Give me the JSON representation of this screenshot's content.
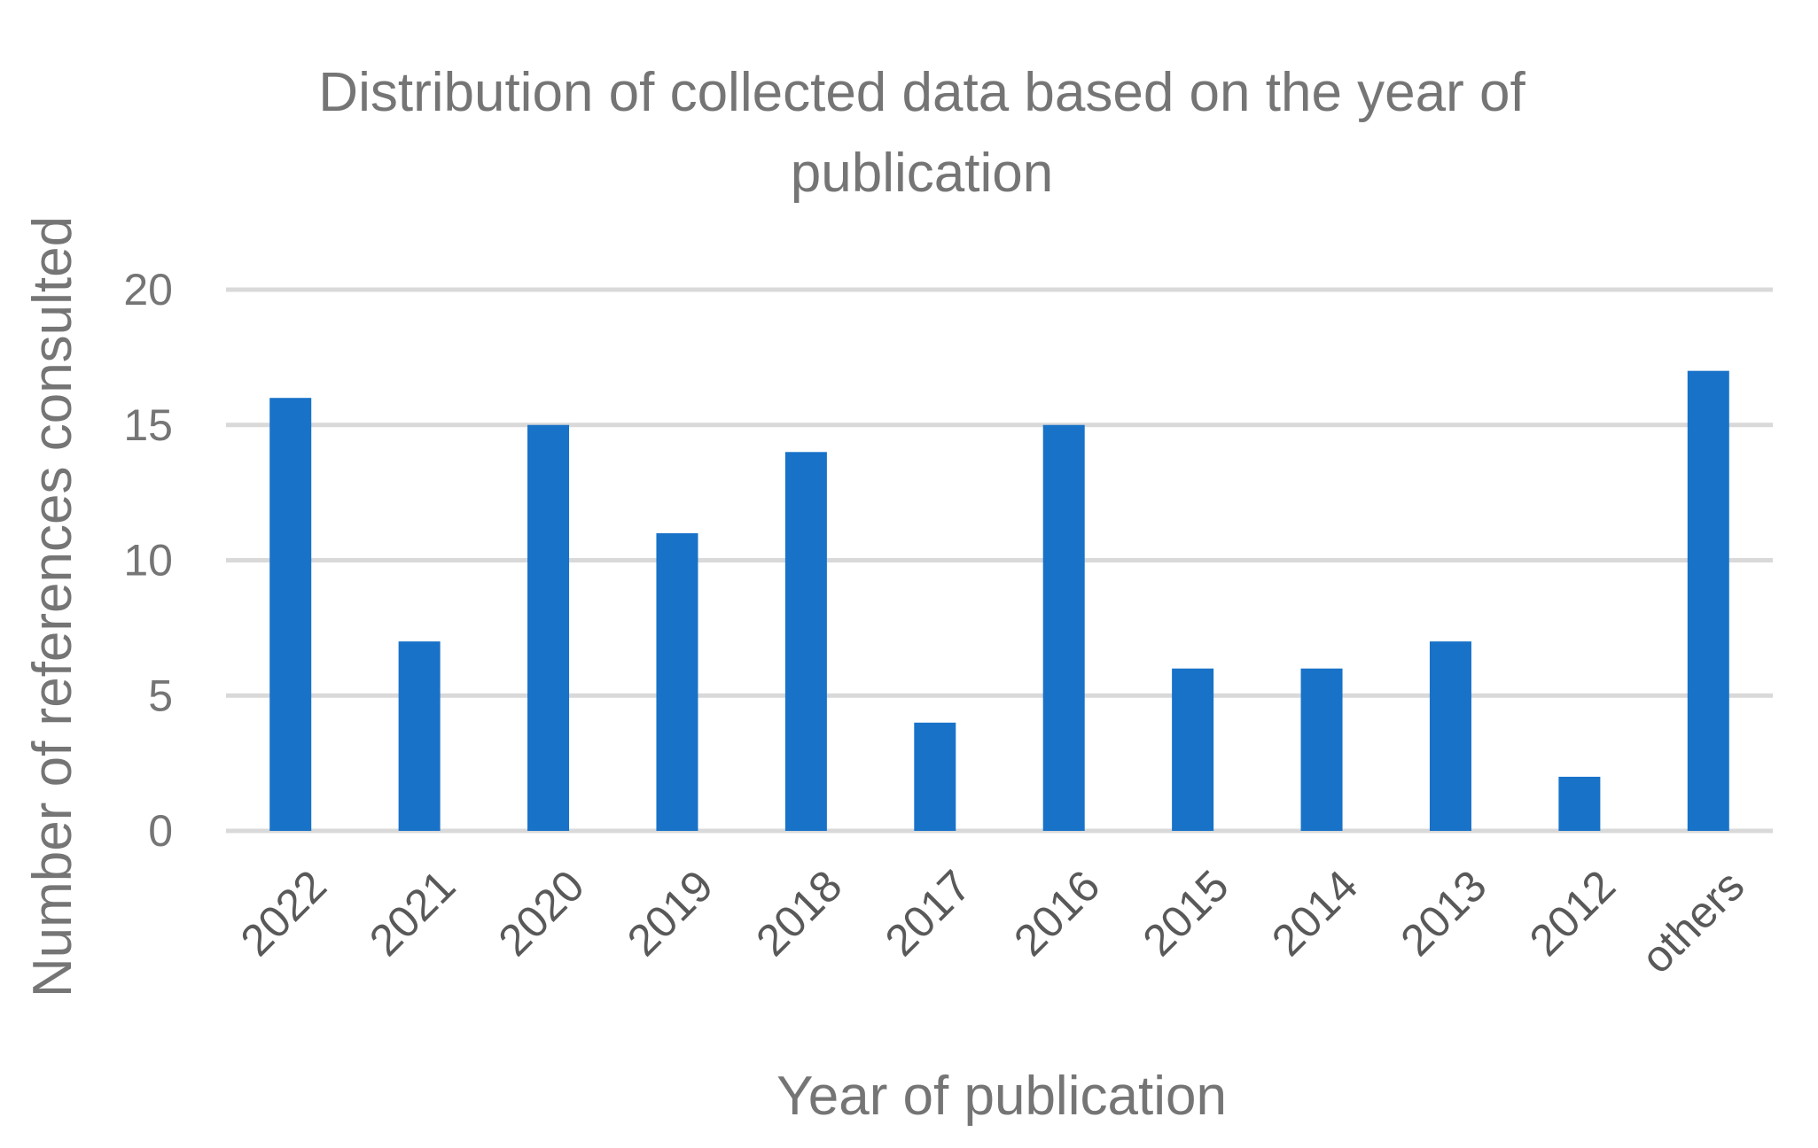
{
  "chart_data": {
    "type": "bar",
    "title_lines": [
      "Distribution of collected data based on the year of",
      "publication"
    ],
    "xlabel": "Year of publication",
    "ylabel": "Number of references consulted",
    "categories": [
      "2022",
      "2021",
      "2020",
      "2019",
      "2018",
      "2017",
      "2016",
      "2015",
      "2014",
      "2013",
      "2012",
      "others"
    ],
    "values": [
      16,
      7,
      15,
      11,
      14,
      4,
      15,
      6,
      6,
      7,
      2,
      17
    ],
    "ylim": [
      0,
      20
    ],
    "yticks": [
      "0",
      "5",
      "10",
      "15",
      "20"
    ],
    "grid": true,
    "legend": "none",
    "bar_color": "#1872c8",
    "grid_color": "#d9d9d9",
    "text_color": "#757575"
  }
}
